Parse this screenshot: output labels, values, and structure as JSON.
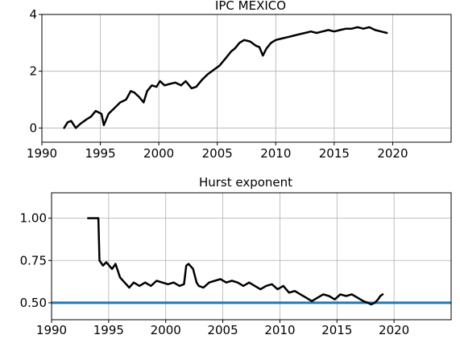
{
  "chart_data": [
    {
      "type": "line",
      "title": "IPC MEXICO",
      "xlim": [
        1990,
        2025
      ],
      "ylim": [
        -0.5,
        4
      ],
      "xticks": [
        1990,
        1995,
        2000,
        2005,
        2010,
        2015,
        2020
      ],
      "xtick_labels": [
        "1990",
        "1995",
        "2000",
        "2005",
        "2010",
        "2015",
        "2020"
      ],
      "yticks": [
        0,
        2,
        4
      ],
      "ytick_labels": [
        "0",
        "2",
        "4"
      ],
      "grid": true,
      "series": [
        {
          "color": "#000000",
          "x": [
            1991.9,
            1992.2,
            1992.5,
            1992.9,
            1993.3,
            1993.8,
            1994.2,
            1994.6,
            1995.1,
            1995.3,
            1995.7,
            1996.2,
            1996.7,
            1997.2,
            1997.6,
            1997.9,
            1998.3,
            1998.7,
            1999.0,
            1999.4,
            1999.8,
            2000.1,
            2000.5,
            2000.9,
            2001.4,
            2001.9,
            2002.3,
            2002.8,
            2003.2,
            2003.7,
            2004.2,
            2004.7,
            2005.2,
            2005.7,
            2006.2,
            2006.5,
            2006.9,
            2007.3,
            2007.8,
            2008.3,
            2008.6,
            2008.9,
            2009.2,
            2009.6,
            2010.0,
            2010.5,
            2011.0,
            2011.5,
            2012.0,
            2012.5,
            2013.0,
            2013.5,
            2014.0,
            2014.5,
            2015.0,
            2015.5,
            2016.0,
            2016.5,
            2017.0,
            2017.5,
            2018.0,
            2018.5,
            2019.0,
            2019.5
          ],
          "y": [
            0.0,
            0.2,
            0.25,
            0.0,
            0.15,
            0.3,
            0.4,
            0.6,
            0.5,
            0.1,
            0.5,
            0.7,
            0.9,
            1.0,
            1.3,
            1.25,
            1.1,
            0.9,
            1.3,
            1.5,
            1.45,
            1.65,
            1.5,
            1.55,
            1.6,
            1.5,
            1.65,
            1.4,
            1.45,
            1.7,
            1.9,
            2.05,
            2.2,
            2.45,
            2.7,
            2.8,
            3.0,
            3.1,
            3.05,
            2.9,
            2.85,
            2.55,
            2.8,
            3.0,
            3.1,
            3.15,
            3.2,
            3.25,
            3.3,
            3.35,
            3.4,
            3.35,
            3.4,
            3.45,
            3.4,
            3.45,
            3.5,
            3.5,
            3.55,
            3.5,
            3.55,
            3.45,
            3.4,
            3.35
          ]
        }
      ]
    },
    {
      "type": "line",
      "title": "Hurst exponent",
      "xlim": [
        1990,
        2025
      ],
      "ylim": [
        0.4,
        1.15
      ],
      "xticks": [
        1990,
        1995,
        2000,
        2005,
        2010,
        2015,
        2020
      ],
      "xtick_labels": [
        "1990",
        "1995",
        "2000",
        "2005",
        "2010",
        "2015",
        "2020"
      ],
      "yticks": [
        0.5,
        0.75,
        1.0
      ],
      "ytick_labels": [
        "0.50",
        "0.75",
        "1.00"
      ],
      "grid": true,
      "reference_line": {
        "y": 0.5,
        "color": "#1f77b4"
      },
      "series": [
        {
          "color": "#000000",
          "x": [
            1993.2,
            1994.1,
            1994.2,
            1994.5,
            1994.8,
            1995.3,
            1995.6,
            1996.0,
            1996.4,
            1996.8,
            1997.2,
            1997.7,
            1998.2,
            1998.7,
            1999.2,
            1999.7,
            2000.2,
            2000.7,
            2001.2,
            2001.6,
            2001.8,
            2002.0,
            2002.4,
            2002.7,
            2002.9,
            2003.3,
            2003.8,
            2004.3,
            2004.8,
            2005.3,
            2005.8,
            2006.3,
            2006.8,
            2007.3,
            2007.8,
            2008.3,
            2008.8,
            2009.3,
            2009.8,
            2010.3,
            2010.8,
            2011.3,
            2011.8,
            2012.3,
            2012.8,
            2013.3,
            2013.8,
            2014.3,
            2014.8,
            2015.3,
            2015.8,
            2016.3,
            2016.8,
            2017.3,
            2017.7,
            2018.0,
            2018.3,
            2018.6,
            2018.8,
            2019.0
          ],
          "y": [
            1.0,
            1.0,
            0.75,
            0.72,
            0.74,
            0.7,
            0.73,
            0.65,
            0.62,
            0.59,
            0.62,
            0.6,
            0.62,
            0.6,
            0.63,
            0.62,
            0.61,
            0.62,
            0.6,
            0.61,
            0.72,
            0.73,
            0.7,
            0.62,
            0.6,
            0.59,
            0.62,
            0.63,
            0.64,
            0.62,
            0.63,
            0.62,
            0.6,
            0.62,
            0.6,
            0.58,
            0.6,
            0.61,
            0.58,
            0.6,
            0.56,
            0.57,
            0.55,
            0.53,
            0.51,
            0.53,
            0.55,
            0.54,
            0.52,
            0.55,
            0.54,
            0.55,
            0.53,
            0.51,
            0.5,
            0.49,
            0.5,
            0.52,
            0.54,
            0.55
          ]
        }
      ]
    }
  ]
}
